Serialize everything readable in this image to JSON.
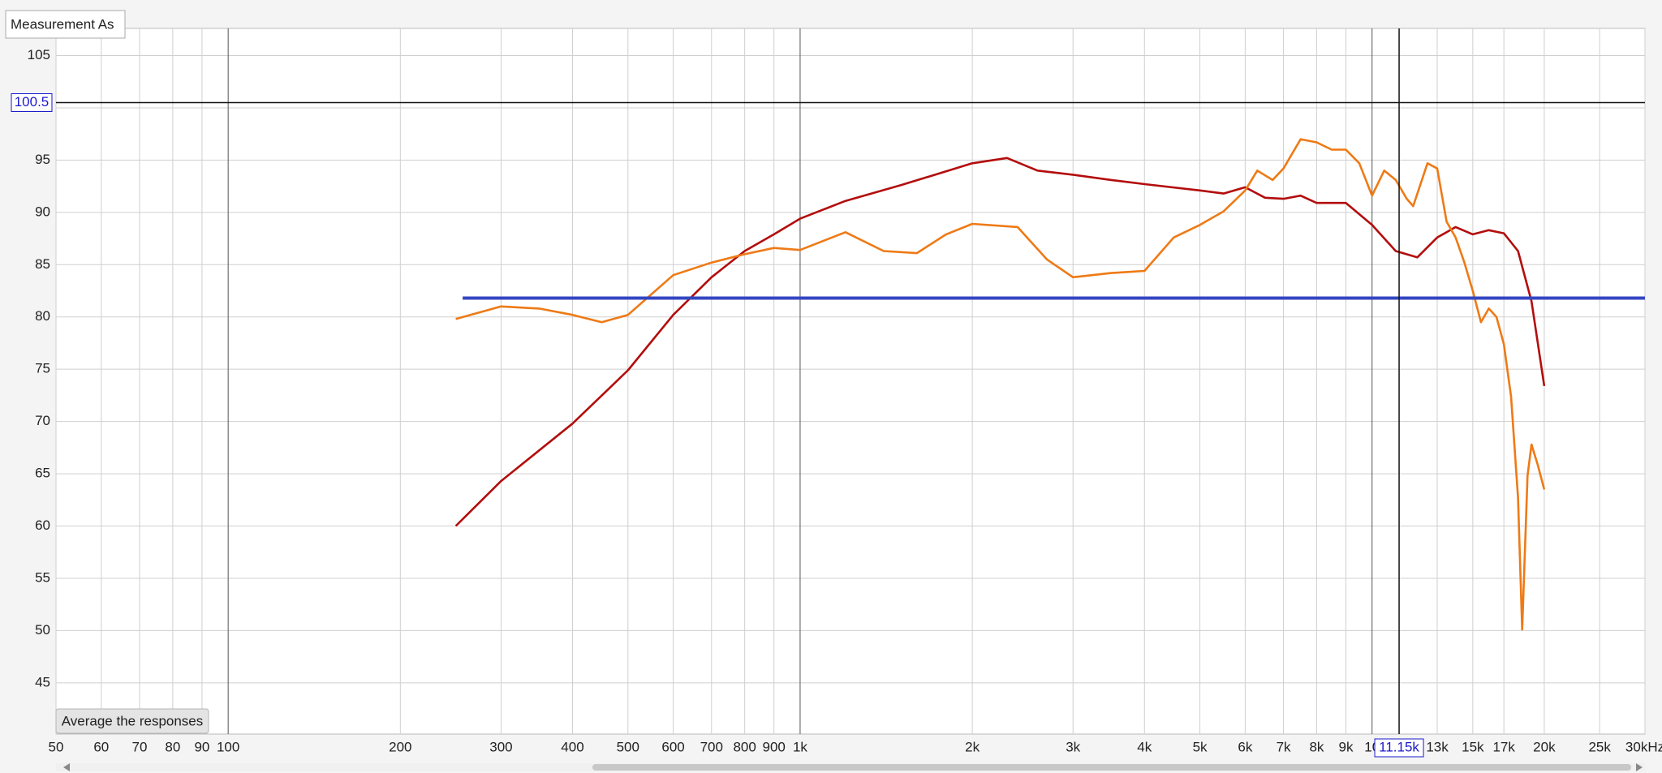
{
  "tooltip": "Measurement As",
  "button": "Average the responses",
  "chart_data": {
    "type": "line",
    "xscale": "log",
    "grid": true,
    "xlim": [
      50,
      30000
    ],
    "ylim": [
      40.1,
      107.6
    ],
    "xticks": [
      50,
      60,
      70,
      80,
      90,
      100,
      200,
      300,
      400,
      500,
      600,
      700,
      800,
      900,
      {
        "value": 1000,
        "label": "1k"
      },
      {
        "value": 2000,
        "label": "2k"
      },
      {
        "value": 3000,
        "label": "3k"
      },
      {
        "value": 4000,
        "label": "4k"
      },
      {
        "value": 5000,
        "label": "5k"
      },
      {
        "value": 6000,
        "label": "6k"
      },
      {
        "value": 7000,
        "label": "7k"
      },
      {
        "value": 8000,
        "label": "8k"
      },
      {
        "value": 9000,
        "label": "9k"
      },
      {
        "value": 10000,
        "label": "10"
      },
      {
        "value": 13000,
        "label": "13k"
      },
      {
        "value": 15000,
        "label": "15k"
      },
      {
        "value": 17000,
        "label": "17k"
      },
      {
        "value": 20000,
        "label": "20k"
      },
      {
        "value": 25000,
        "label": "25k"
      },
      {
        "value": 30000,
        "label": "30kHz"
      }
    ],
    "yticks": [
      45,
      50,
      55,
      60,
      65,
      70,
      75,
      80,
      85,
      90,
      95,
      100,
      105
    ],
    "cursor": {
      "x": {
        "value": 11150,
        "label": "11.15k"
      },
      "y": {
        "value": 100.5,
        "label": "100.5"
      }
    },
    "series": [
      {
        "color": "#b30d0d",
        "x": [
          250,
          300,
          400,
          500,
          600,
          700,
          800,
          900,
          1000,
          1200,
          1500,
          2000,
          2300,
          2600,
          3000,
          3500,
          4000,
          5000,
          5500,
          6000,
          6500,
          7000,
          7500,
          8000,
          9000,
          10000,
          11000,
          12000,
          13000,
          14000,
          15000,
          16000,
          17000,
          18000,
          19000,
          20000
        ],
        "values": [
          60.0,
          64.3,
          69.8,
          74.9,
          80.2,
          83.8,
          86.3,
          87.9,
          89.4,
          91.1,
          92.6,
          94.7,
          95.2,
          94.0,
          93.6,
          93.1,
          92.7,
          92.1,
          91.8,
          92.4,
          91.4,
          91.3,
          91.6,
          90.9,
          90.9,
          88.8,
          86.3,
          85.7,
          87.6,
          88.6,
          87.9,
          88.3,
          88.0,
          86.3,
          81.5,
          73.4
        ]
      },
      {
        "color": "#ee7a16",
        "x": [
          250,
          300,
          350,
          400,
          450,
          500,
          600,
          700,
          800,
          900,
          1000,
          1200,
          1400,
          1600,
          1800,
          2000,
          2400,
          2700,
          3000,
          3500,
          4000,
          4500,
          5000,
          5500,
          6000,
          6300,
          6700,
          7000,
          7500,
          8000,
          8500,
          9000,
          9500,
          10000,
          10500,
          11000,
          11500,
          11800,
          12500,
          13000,
          13500,
          14000,
          14500,
          15000,
          15500,
          16000,
          16500,
          17000,
          17500,
          18000,
          18300,
          18700,
          19000,
          19500,
          20000
        ],
        "values": [
          79.8,
          81.0,
          80.8,
          80.2,
          79.5,
          80.2,
          84.0,
          85.2,
          86.0,
          86.6,
          86.4,
          88.1,
          86.3,
          86.1,
          87.9,
          88.9,
          88.6,
          85.5,
          83.8,
          84.2,
          84.4,
          87.6,
          88.8,
          90.1,
          92.1,
          94.0,
          93.1,
          94.2,
          97.0,
          96.7,
          96.0,
          96.0,
          94.7,
          91.6,
          94.0,
          93.1,
          91.3,
          90.6,
          94.7,
          94.2,
          89.1,
          87.6,
          85.2,
          82.5,
          79.5,
          80.8,
          80.0,
          77.4,
          72.4,
          62.7,
          50.1,
          64.8,
          67.8,
          65.8,
          63.5
        ]
      },
      {
        "color": "#3346c0",
        "x": [
          257,
          30000
        ],
        "values": [
          81.8,
          81.8
        ]
      }
    ]
  }
}
